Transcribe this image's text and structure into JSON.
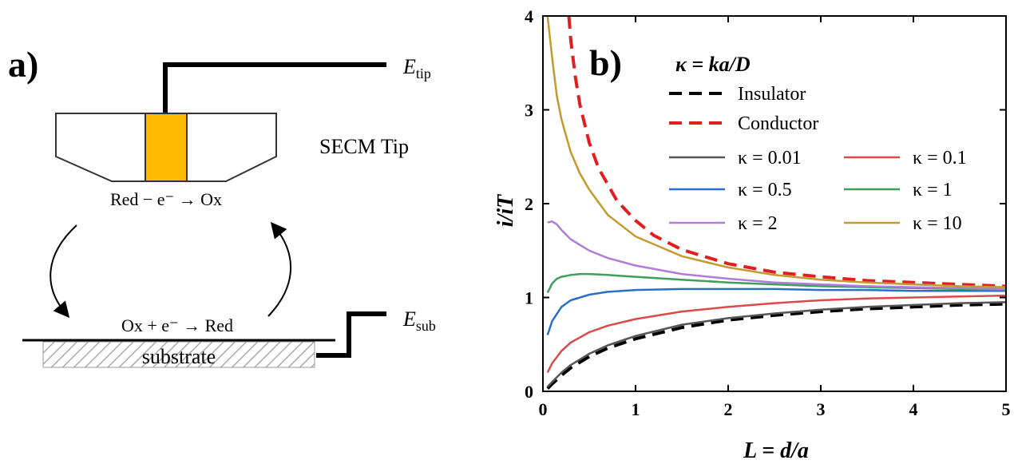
{
  "panel_a": {
    "label": "a)",
    "e_tip": {
      "main": "E",
      "sub": "tip"
    },
    "e_sub": {
      "main": "E",
      "sub": "sub"
    },
    "tip_label": "SECM Tip",
    "tip_reaction": "Red − e⁻ → Ox",
    "substrate_reaction": "Ox + e⁻ → Red",
    "substrate_label": "substrate",
    "colors": {
      "electrode": "#FFBB00",
      "hatch": "#aaaaaa"
    }
  },
  "panel_b": {
    "label": "b)",
    "legend_title": "κ = ka/D"
  },
  "chart_data": {
    "type": "line",
    "xlabel": "L = d/a",
    "ylabel": "i/iT",
    "xlim": [
      0,
      5
    ],
    "ylim": [
      0,
      4
    ],
    "xticks": [
      0,
      1,
      2,
      3,
      4,
      5
    ],
    "yticks": [
      0,
      1,
      2,
      3,
      4
    ],
    "grid": false,
    "legend_position": "top-right",
    "series": [
      {
        "name": "Insulator",
        "color": "#000000",
        "dash": true,
        "x": [
          0.05,
          0.1,
          0.2,
          0.3,
          0.5,
          0.7,
          1.0,
          1.5,
          2.0,
          2.5,
          3.0,
          3.5,
          4.0,
          4.5,
          5.0
        ],
        "y": [
          0.03,
          0.08,
          0.17,
          0.25,
          0.37,
          0.46,
          0.56,
          0.68,
          0.76,
          0.81,
          0.85,
          0.88,
          0.9,
          0.92,
          0.93
        ]
      },
      {
        "name": "Conductor",
        "color": "#E02020",
        "dash": true,
        "x": [
          0.28,
          0.3,
          0.35,
          0.4,
          0.5,
          0.6,
          0.8,
          1.0,
          1.2,
          1.5,
          2.0,
          2.5,
          3.0,
          3.5,
          4.0,
          4.5,
          5.0
        ],
        "y": [
          4.0,
          3.75,
          3.35,
          3.05,
          2.65,
          2.38,
          2.03,
          1.82,
          1.66,
          1.51,
          1.36,
          1.27,
          1.22,
          1.18,
          1.16,
          1.14,
          1.12
        ]
      },
      {
        "name": "κ = 0.01",
        "color": "#555555",
        "dash": false,
        "x": [
          0.05,
          0.1,
          0.2,
          0.3,
          0.5,
          0.7,
          1.0,
          1.5,
          2.0,
          2.5,
          3.0,
          3.5,
          4.0,
          4.5,
          5.0
        ],
        "y": [
          0.05,
          0.1,
          0.2,
          0.28,
          0.4,
          0.49,
          0.59,
          0.71,
          0.78,
          0.83,
          0.87,
          0.9,
          0.92,
          0.94,
          0.95
        ]
      },
      {
        "name": "κ = 0.1",
        "color": "#D94A4A",
        "dash": false,
        "x": [
          0.05,
          0.1,
          0.2,
          0.3,
          0.5,
          0.7,
          1.0,
          1.5,
          2.0,
          2.5,
          3.0,
          3.5,
          4.0,
          4.5,
          5.0
        ],
        "y": [
          0.2,
          0.3,
          0.43,
          0.52,
          0.63,
          0.7,
          0.77,
          0.85,
          0.9,
          0.94,
          0.97,
          0.99,
          1.0,
          1.01,
          1.02
        ]
      },
      {
        "name": "κ = 0.5",
        "color": "#2C6FC2",
        "dash": false,
        "x": [
          0.05,
          0.1,
          0.2,
          0.3,
          0.5,
          0.7,
          1.0,
          1.5,
          2.0,
          2.5,
          3.0,
          3.5,
          4.0,
          4.5,
          5.0
        ],
        "y": [
          0.6,
          0.75,
          0.9,
          0.97,
          1.03,
          1.06,
          1.08,
          1.09,
          1.09,
          1.09,
          1.08,
          1.08,
          1.07,
          1.07,
          1.07
        ]
      },
      {
        "name": "κ = 1",
        "color": "#3E9E5C",
        "dash": false,
        "x": [
          0.05,
          0.1,
          0.15,
          0.2,
          0.3,
          0.4,
          0.5,
          0.7,
          1.0,
          1.5,
          2.0,
          2.5,
          3.0,
          3.5,
          4.0,
          4.5,
          5.0
        ],
        "y": [
          1.05,
          1.15,
          1.2,
          1.22,
          1.24,
          1.25,
          1.25,
          1.24,
          1.22,
          1.19,
          1.16,
          1.14,
          1.12,
          1.11,
          1.1,
          1.09,
          1.08
        ]
      },
      {
        "name": "κ = 2",
        "color": "#B07CDC",
        "dash": false,
        "x": [
          0.05,
          0.1,
          0.15,
          0.2,
          0.3,
          0.5,
          0.7,
          1.0,
          1.5,
          2.0,
          2.5,
          3.0,
          3.5,
          4.0,
          4.5,
          5.0
        ],
        "y": [
          1.8,
          1.81,
          1.78,
          1.72,
          1.62,
          1.5,
          1.42,
          1.34,
          1.25,
          1.2,
          1.16,
          1.14,
          1.12,
          1.11,
          1.1,
          1.09
        ]
      },
      {
        "name": "κ = 10",
        "color": "#C39A2E",
        "dash": false,
        "x": [
          0.05,
          0.1,
          0.15,
          0.2,
          0.3,
          0.4,
          0.5,
          0.7,
          1.0,
          1.5,
          2.0,
          2.5,
          3.0,
          3.5,
          4.0,
          4.5,
          5.0
        ],
        "y": [
          4.0,
          3.55,
          3.15,
          2.9,
          2.55,
          2.32,
          2.15,
          1.88,
          1.65,
          1.44,
          1.32,
          1.24,
          1.19,
          1.16,
          1.14,
          1.12,
          1.11
        ]
      }
    ]
  }
}
